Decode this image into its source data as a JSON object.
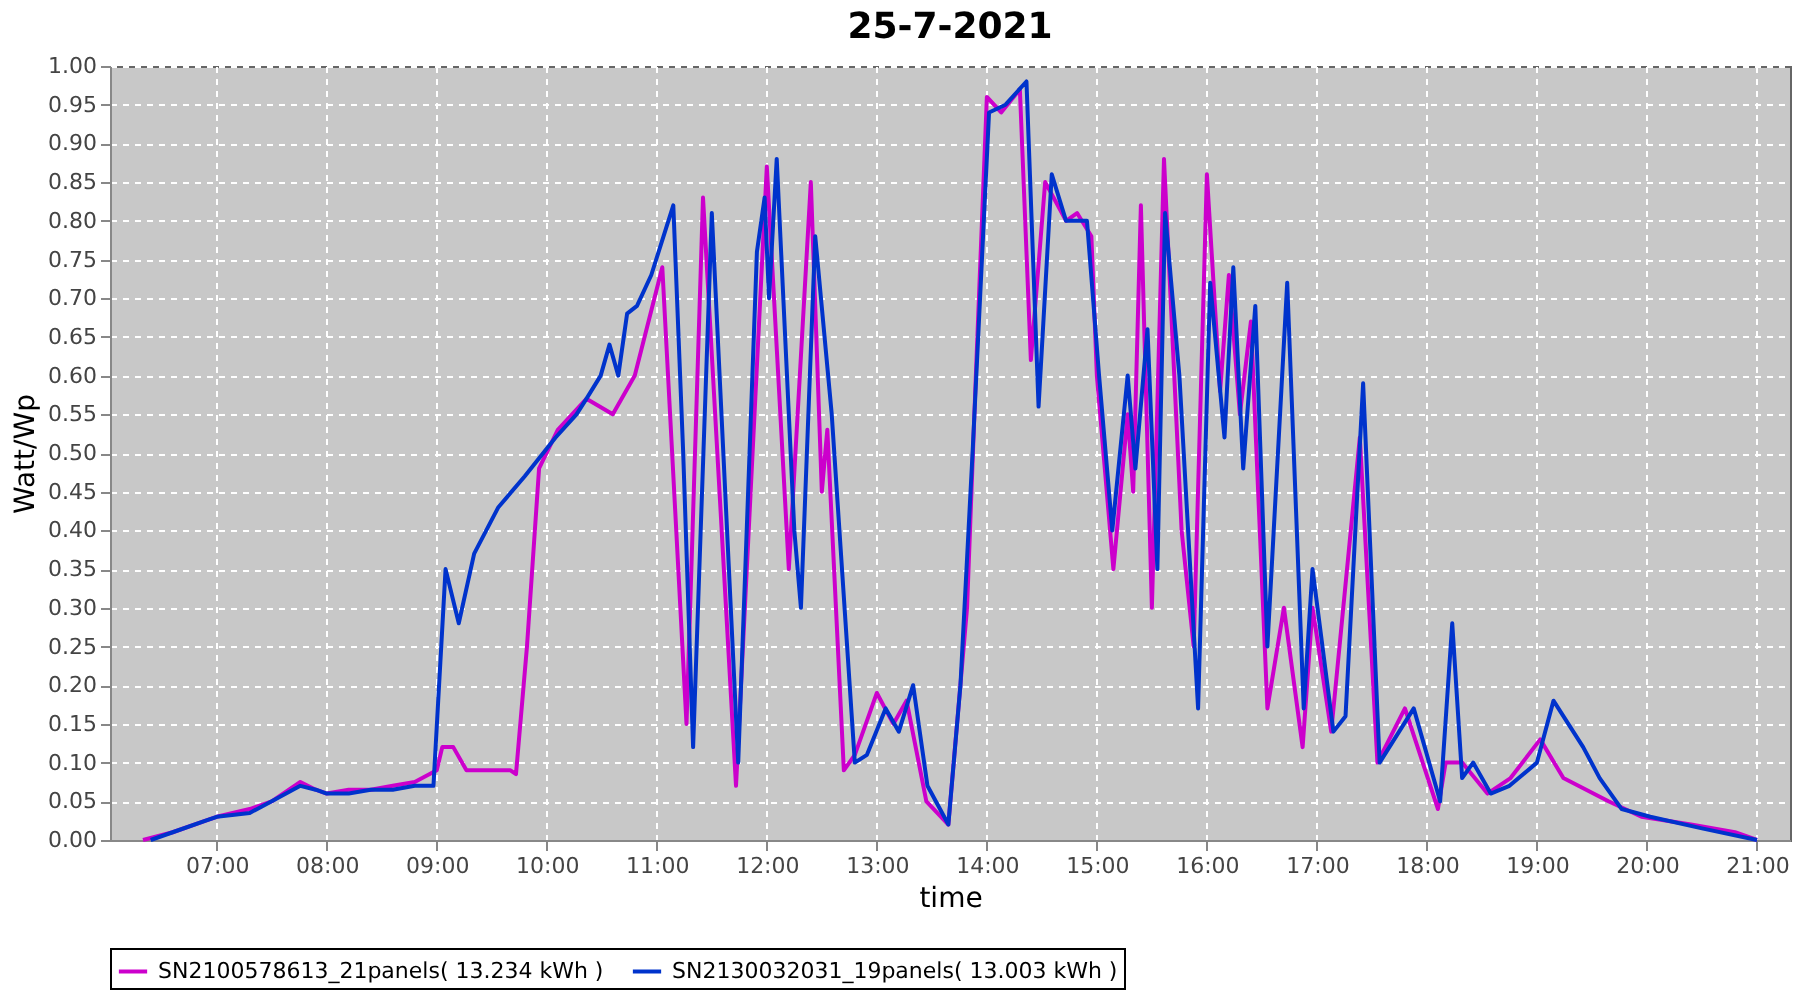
{
  "chart_data": {
    "type": "line",
    "title": "25-7-2021",
    "xlabel": "time",
    "ylabel": "Watt/Wp",
    "grid": true,
    "legend": "bottom",
    "xlim": [
      6.03,
      21.3
    ],
    "ylim": [
      0,
      1.0
    ],
    "xticks": [
      {
        "value": 7,
        "label": "07:00"
      },
      {
        "value": 8,
        "label": "08:00"
      },
      {
        "value": 9,
        "label": "09:00"
      },
      {
        "value": 10,
        "label": "10:00"
      },
      {
        "value": 11,
        "label": "11:00"
      },
      {
        "value": 12,
        "label": "12:00"
      },
      {
        "value": 13,
        "label": "13:00"
      },
      {
        "value": 14,
        "label": "14:00"
      },
      {
        "value": 15,
        "label": "15:00"
      },
      {
        "value": 16,
        "label": "16:00"
      },
      {
        "value": 17,
        "label": "17:00"
      },
      {
        "value": 18,
        "label": "18:00"
      },
      {
        "value": 19,
        "label": "19:00"
      },
      {
        "value": 20,
        "label": "20:00"
      },
      {
        "value": 21,
        "label": "21:00"
      }
    ],
    "yticks": [
      {
        "value": 0,
        "label": "0.00"
      },
      0.05,
      {
        "value": 0.1,
        "label": "0.10"
      },
      0.15,
      {
        "value": 0.2,
        "label": "0.20"
      },
      0.25,
      {
        "value": 0.3,
        "label": "0.30"
      },
      0.35,
      {
        "value": 0.4,
        "label": "0.40"
      },
      0.45,
      {
        "value": 0.5,
        "label": "0.50"
      },
      0.55,
      {
        "value": 0.6,
        "label": "0.60"
      },
      0.65,
      {
        "value": 0.7,
        "label": "0.70"
      },
      0.75,
      {
        "value": 0.8,
        "label": "0.80"
      },
      0.85,
      {
        "value": 0.9,
        "label": "0.90"
      },
      0.95,
      {
        "value": 1.0,
        "label": "1.00"
      }
    ],
    "series": [
      {
        "name": "SN2100578613_21panels( 13.234 kWh )",
        "color": "#cc00cc",
        "x": [
          6.33,
          6.6,
          6.9,
          7.0,
          7.3,
          7.5,
          7.76,
          7.9,
          8.0,
          8.2,
          8.4,
          8.6,
          8.8,
          9.0,
          9.05,
          9.15,
          9.27,
          9.67,
          9.72,
          9.82,
          9.93,
          10.1,
          10.36,
          10.6,
          10.8,
          11.05,
          11.27,
          11.42,
          11.72,
          12.0,
          12.2,
          12.4,
          12.5,
          12.55,
          12.7,
          12.8,
          13.0,
          13.15,
          13.27,
          13.45,
          13.65,
          13.82,
          13.9,
          14.0,
          14.13,
          14.3,
          14.4,
          14.53,
          14.72,
          14.82,
          14.95,
          15.0,
          15.15,
          15.28,
          15.33,
          15.4,
          15.5,
          15.61,
          15.77,
          15.88,
          16.0,
          16.12,
          16.2,
          16.3,
          16.4,
          16.55,
          16.7,
          16.87,
          16.96,
          17.13,
          17.39,
          17.55,
          17.8,
          18.1,
          18.17,
          18.32,
          18.55,
          18.76,
          19.03,
          19.24,
          19.65,
          19.95,
          20.4,
          20.8,
          21.0
        ],
        "values": [
          0.0,
          0.01,
          0.025,
          0.03,
          0.04,
          0.05,
          0.075,
          0.065,
          0.06,
          0.065,
          0.065,
          0.07,
          0.075,
          0.09,
          0.12,
          0.12,
          0.09,
          0.09,
          0.085,
          0.25,
          0.48,
          0.53,
          0.57,
          0.55,
          0.6,
          0.74,
          0.15,
          0.83,
          0.07,
          0.87,
          0.35,
          0.85,
          0.45,
          0.53,
          0.09,
          0.11,
          0.19,
          0.15,
          0.18,
          0.05,
          0.02,
          0.3,
          0.6,
          0.96,
          0.94,
          0.97,
          0.62,
          0.85,
          0.8,
          0.81,
          0.78,
          0.6,
          0.35,
          0.55,
          0.45,
          0.82,
          0.3,
          0.88,
          0.4,
          0.25,
          0.86,
          0.58,
          0.73,
          0.55,
          0.67,
          0.17,
          0.3,
          0.12,
          0.3,
          0.14,
          0.52,
          0.1,
          0.17,
          0.04,
          0.1,
          0.1,
          0.06,
          0.08,
          0.13,
          0.08,
          0.05,
          0.03,
          0.02,
          0.01,
          0.0
        ]
      },
      {
        "name": "SN2130032031_19panels( 13.003 kWh )",
        "color": "#0033cc",
        "x": [
          6.4,
          6.6,
          6.9,
          7.0,
          7.3,
          7.5,
          7.76,
          7.9,
          8.0,
          8.2,
          8.4,
          8.6,
          8.8,
          8.97,
          9.08,
          9.2,
          9.34,
          9.56,
          9.8,
          10.08,
          10.27,
          10.36,
          10.49,
          10.57,
          10.65,
          10.73,
          10.82,
          10.95,
          11.15,
          11.24,
          11.33,
          11.5,
          11.74,
          11.91,
          11.98,
          12.02,
          12.09,
          12.25,
          12.31,
          12.44,
          12.59,
          12.8,
          12.91,
          13.08,
          13.2,
          13.33,
          13.46,
          13.65,
          13.76,
          13.87,
          14.02,
          14.17,
          14.36,
          14.47,
          14.59,
          14.72,
          14.91,
          15.02,
          15.14,
          15.28,
          15.35,
          15.46,
          15.55,
          15.62,
          15.75,
          15.92,
          16.03,
          16.16,
          16.24,
          16.33,
          16.44,
          16.55,
          16.73,
          16.88,
          16.96,
          17.15,
          17.26,
          17.42,
          17.57,
          17.88,
          18.12,
          18.23,
          18.32,
          18.42,
          18.58,
          18.75,
          19.0,
          19.15,
          19.42,
          19.57,
          19.77,
          20.03,
          20.5,
          21.0
        ],
        "values": [
          0.0,
          0.01,
          0.025,
          0.03,
          0.035,
          0.05,
          0.07,
          0.065,
          0.06,
          0.06,
          0.065,
          0.065,
          0.07,
          0.07,
          0.35,
          0.28,
          0.37,
          0.43,
          0.47,
          0.52,
          0.55,
          0.57,
          0.6,
          0.64,
          0.6,
          0.68,
          0.69,
          0.73,
          0.82,
          0.5,
          0.12,
          0.81,
          0.1,
          0.76,
          0.83,
          0.7,
          0.88,
          0.4,
          0.3,
          0.78,
          0.55,
          0.1,
          0.11,
          0.17,
          0.14,
          0.2,
          0.07,
          0.02,
          0.2,
          0.5,
          0.94,
          0.95,
          0.98,
          0.56,
          0.86,
          0.8,
          0.8,
          0.6,
          0.4,
          0.6,
          0.48,
          0.66,
          0.35,
          0.81,
          0.6,
          0.17,
          0.72,
          0.52,
          0.74,
          0.48,
          0.69,
          0.25,
          0.72,
          0.17,
          0.35,
          0.14,
          0.16,
          0.59,
          0.1,
          0.17,
          0.05,
          0.28,
          0.08,
          0.1,
          0.06,
          0.07,
          0.1,
          0.18,
          0.12,
          0.08,
          0.04,
          0.03,
          0.015,
          0.0
        ]
      }
    ]
  }
}
